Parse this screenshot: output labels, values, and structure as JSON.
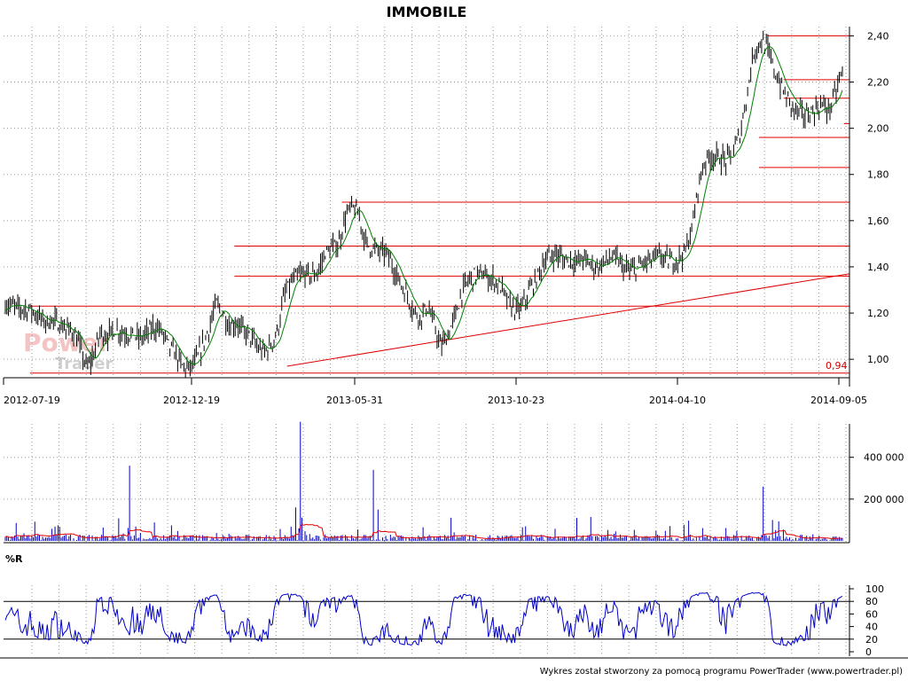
{
  "chart_data": [
    {
      "type": "line",
      "title": "IMMOBILE",
      "x_dates": [
        "2012-07-19",
        "2012-12-19",
        "2013-05-31",
        "2013-10-23",
        "2014-04-10",
        "2014-09-05"
      ],
      "y_ticks": [
        "1,00",
        "1,20",
        "1,40",
        "1,60",
        "1,80",
        "2,00",
        "2,20",
        "2,40"
      ],
      "ylim": [
        0.92,
        2.44
      ],
      "grid": true,
      "min_label": "0,94",
      "close_series": [
        1.24,
        1.23,
        1.22,
        1.22,
        1.21,
        1.18,
        1.16,
        1.17,
        1.15,
        1.13,
        1.12,
        1.05,
        0.96,
        1.02,
        1.12,
        1.1,
        1.13,
        1.12,
        1.11,
        1.1,
        1.09,
        1.12,
        1.14,
        1.12,
        1.06,
        1.02,
        0.97,
        0.96,
        0.99,
        1.06,
        1.14,
        1.24,
        1.2,
        1.14,
        1.16,
        1.12,
        1.1,
        1.05,
        1.03,
        1.06,
        1.12,
        1.28,
        1.33,
        1.36,
        1.37,
        1.36,
        1.38,
        1.46,
        1.48,
        1.5,
        1.62,
        1.66,
        1.62,
        1.5,
        1.48,
        1.47,
        1.46,
        1.4,
        1.33,
        1.28,
        1.21,
        1.18,
        1.23,
        1.15,
        1.05,
        1.1,
        1.18,
        1.28,
        1.34,
        1.36,
        1.37,
        1.35,
        1.34,
        1.3,
        1.24,
        1.21,
        1.23,
        1.3,
        1.34,
        1.42,
        1.44,
        1.46,
        1.43,
        1.43,
        1.42,
        1.44,
        1.41,
        1.4,
        1.42,
        1.44,
        1.43,
        1.39,
        1.38,
        1.4,
        1.42,
        1.43,
        1.45,
        1.43,
        1.42,
        1.44,
        1.47,
        1.58,
        1.78,
        1.87,
        1.88,
        1.87,
        1.86,
        1.9,
        1.98,
        2.15,
        2.33,
        2.38,
        2.34,
        2.25,
        2.18,
        2.12,
        2.08,
        2.06,
        2.06,
        2.08,
        2.1,
        2.08,
        2.15,
        2.25
      ],
      "resistance_lines": [
        {
          "from": "2014-06-05",
          "value": 2.4
        },
        {
          "from": "2014-06-20",
          "value": 2.21
        },
        {
          "from": "2014-06-20",
          "value": 2.13
        },
        {
          "from": "2014-08-15",
          "value": 2.02
        },
        {
          "from": "2014-05-28",
          "value": 1.96
        },
        {
          "from": "2014-05-28",
          "value": 1.83
        },
        {
          "from": "2013-05-05",
          "value": 1.68
        },
        {
          "from": "2013-01-25",
          "value": 1.49
        },
        {
          "from": "2013-01-25",
          "value": 1.36
        },
        {
          "from": "2012-07-19",
          "value": 1.23
        },
        {
          "from": "2012-07-19",
          "value": 0.94
        }
      ],
      "trendline": {
        "from_date": "2013-03-15",
        "from_value": 0.97,
        "to_date": "2014-09-05",
        "to_value": 1.37
      }
    },
    {
      "type": "bar",
      "title": "",
      "y_ticks": [
        "200 000",
        "400 000"
      ],
      "ylim": [
        0,
        560000
      ],
      "grid": true,
      "volume_spikes": [
        {
          "date": "2012-10-20",
          "value": 360000
        },
        {
          "date": "2013-03-27",
          "value": 570000
        },
        {
          "date": "2013-03-23",
          "value": 160000
        },
        {
          "date": "2013-06-04",
          "value": 340000
        },
        {
          "date": "2013-06-08",
          "value": 150000
        },
        {
          "date": "2014-06-01",
          "value": 260000
        }
      ]
    },
    {
      "type": "line",
      "title": "%R",
      "y_ticks": [
        "0",
        "20",
        "40",
        "60",
        "80",
        "100"
      ],
      "ylim": [
        0,
        100
      ],
      "grid": true,
      "reference_lines": [
        20,
        80
      ]
    }
  ],
  "footer": "Wykres został stworzony za pomocą programu PowerTrader (www.powertrader.pl)",
  "watermark": {
    "line1": "Power",
    "line2": "Trader"
  },
  "colors": {
    "candle_up": "#000000",
    "moving_avg": "#008000",
    "resistance": "#e00000",
    "volume": "#0000c8",
    "volume_avg": "#e00000",
    "williams": "#0000c8",
    "grid": "#999999"
  }
}
